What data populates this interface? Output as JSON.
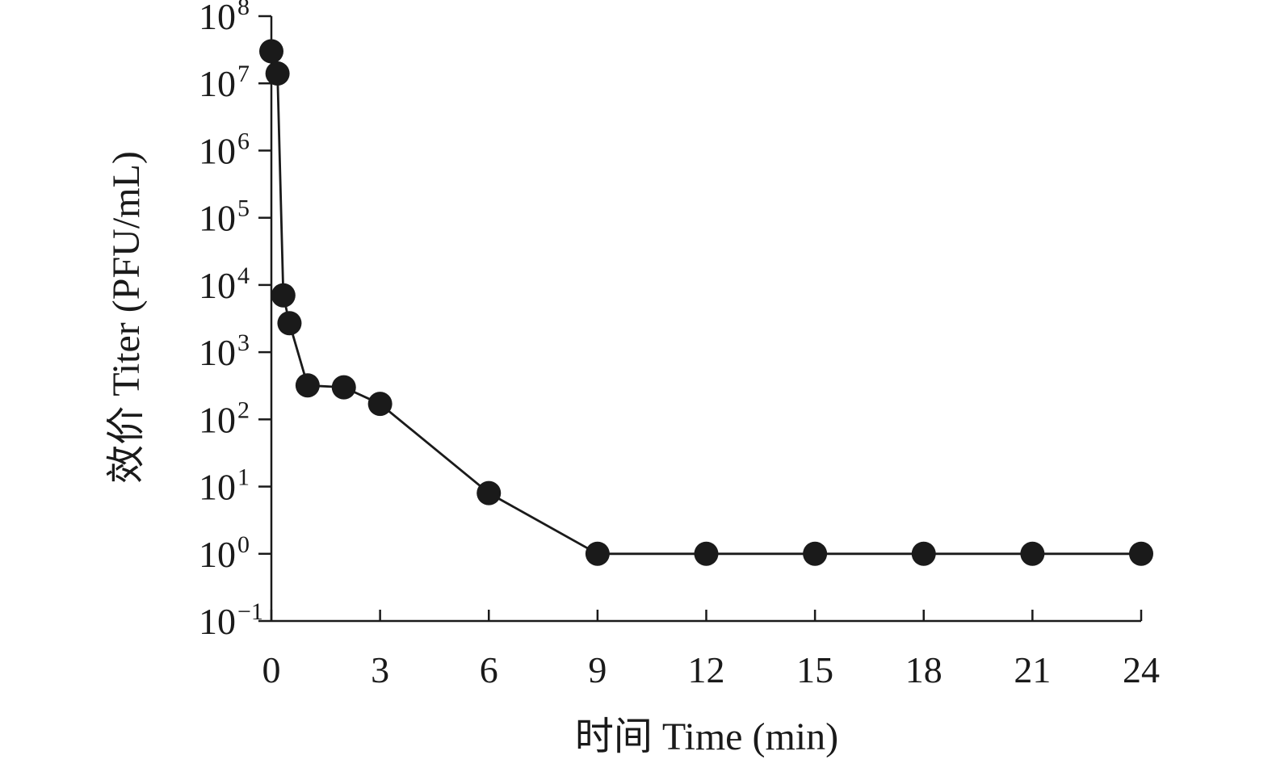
{
  "chart_data": {
    "type": "line",
    "xlabel": "时间 Time (min)",
    "ylabel": "效价 Titer (PFU/mL)",
    "x_scale": "linear",
    "y_scale": "log",
    "xlim": [
      0,
      24
    ],
    "ylim": [
      0.1,
      100000000
    ],
    "x_ticks": [
      "0",
      "3",
      "6",
      "9",
      "12",
      "15",
      "18",
      "21",
      "24"
    ],
    "y_ticks": [
      {
        "base": "10",
        "exp": "8"
      },
      {
        "base": "10",
        "exp": "7"
      },
      {
        "base": "10",
        "exp": "6"
      },
      {
        "base": "10",
        "exp": "5"
      },
      {
        "base": "10",
        "exp": "4"
      },
      {
        "base": "10",
        "exp": "3"
      },
      {
        "base": "10",
        "exp": "2"
      },
      {
        "base": "10",
        "exp": "1"
      },
      {
        "base": "10",
        "exp": "0"
      },
      {
        "base": "10",
        "exp": "−1"
      }
    ],
    "grid": false,
    "series": [
      {
        "x": [
          0,
          0.17,
          0.33,
          0.5,
          1,
          2,
          3,
          6,
          9,
          12,
          15,
          18,
          21,
          24
        ],
        "y": [
          30000000,
          14000000,
          7000,
          2700,
          320,
          300,
          170,
          8,
          1,
          1,
          1,
          1,
          1,
          1
        ]
      }
    ],
    "colors": {
      "line": "#1a1a1a",
      "marker": "#1a1a1a"
    }
  }
}
